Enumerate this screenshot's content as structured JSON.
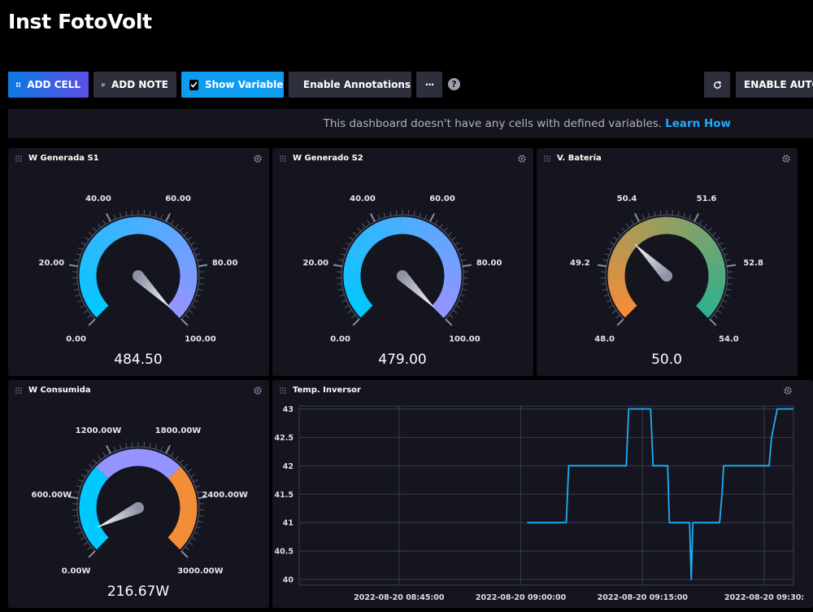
{
  "dashboard": {
    "title": "Inst FotoVolt"
  },
  "toolbar": {
    "add_cell": "ADD CELL",
    "add_note": "ADD NOTE",
    "show_variables": "Show Variables",
    "enable_annotations": "Enable Annotations",
    "more": "···",
    "help": "?",
    "enable_auto_refresh": "ENABLE AUTO"
  },
  "banner": {
    "message": "This dashboard doesn't have any cells with defined variables.",
    "link": "Learn How"
  },
  "cells": {
    "g1": {
      "title": "W Generada S1",
      "value": "484.50",
      "min": 0,
      "max": 100,
      "reading": 484.5,
      "ticks": [
        "0.00",
        "20.00",
        "40.00",
        "60.00",
        "80.00",
        "100.00"
      ],
      "colors": [
        "#00c9ff",
        "#9394ff"
      ]
    },
    "g2": {
      "title": "W Generado S2",
      "value": "479.00",
      "min": 0,
      "max": 100,
      "reading": 479,
      "ticks": [
        "0.00",
        "20.00",
        "40.00",
        "60.00",
        "80.00",
        "100.00"
      ],
      "colors": [
        "#00c9ff",
        "#9394ff"
      ]
    },
    "g3": {
      "title": "V. Batería",
      "value": "50.0",
      "min": 48,
      "max": 54,
      "reading": 50,
      "ticks": [
        "48.0",
        "49.2",
        "50.4",
        "51.6",
        "52.8",
        "54.0"
      ],
      "colors": [
        "#f48d38",
        "#32b08c"
      ]
    },
    "g4": {
      "title": "W Consumida",
      "value": "216.67W",
      "min": 0,
      "max": 3000,
      "reading": 216.67,
      "ticks": [
        "0.00W",
        "600.00W",
        "1200.00W",
        "1800.00W",
        "2400.00W",
        "3000.00W"
      ],
      "colors": [
        "#00c9ff",
        "#9394ff",
        "#f48d38"
      ]
    },
    "chart": {
      "title": "Temp. Inversor"
    }
  },
  "chart_data": {
    "type": "line",
    "title": "Temp. Inversor",
    "color": "#22adf6",
    "ylim": [
      39.9,
      43.05
    ],
    "yticks": [
      "43",
      "42.5",
      "42",
      "41.5",
      "41",
      "40.5",
      "40"
    ],
    "xticks": [
      "2022-08-20 08:45:00",
      "2022-08-20 09:00:00",
      "2022-08-20 09:15:00",
      "2022-08-20 09:30:"
    ],
    "xtick_minutes": [
      0,
      15,
      30,
      45
    ],
    "xlim_minutes": [
      -12.3,
      48.6
    ],
    "series": [
      {
        "x": [
          15.8,
          20.6,
          20.9,
          28.0,
          28.3,
          31.0,
          31.3,
          33.1,
          33.3,
          35.8,
          36.0,
          36.2,
          36.4,
          39.5,
          39.8,
          40.0,
          45.6,
          45.9,
          46.6,
          46.9,
          48.6
        ],
        "y": [
          41,
          41,
          42,
          42,
          43,
          43,
          42,
          42,
          41,
          41,
          40,
          41,
          41,
          41,
          41.5,
          42,
          42,
          42.5,
          43,
          43,
          43
        ]
      }
    ]
  }
}
